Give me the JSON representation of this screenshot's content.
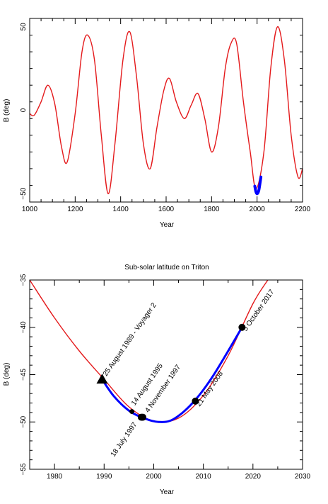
{
  "chart_data": [
    {
      "type": "line",
      "title": "",
      "xlabel": "Year",
      "ylabel": "B (deg)",
      "xlim": [
        1000,
        2200
      ],
      "ylim": [
        -55,
        55
      ],
      "x_major_ticks": [
        1000,
        1200,
        1400,
        1600,
        1800,
        2000,
        2200
      ],
      "x_tick_labels": [
        "1000",
        "1200",
        "1400",
        "1600",
        "1800",
        "2000",
        "2200"
      ],
      "y_major_ticks": [
        -50,
        0,
        50
      ],
      "y_tick_labels": [
        "−50",
        "0",
        "50"
      ],
      "grid": false,
      "series": [
        {
          "color": "#e41a1c",
          "x": [
            1000,
            1020,
            1050,
            1080,
            1110,
            1140,
            1165,
            1200,
            1230,
            1255,
            1285,
            1315,
            1345,
            1375,
            1410,
            1440,
            1470,
            1500,
            1530,
            1560,
            1590,
            1615,
            1645,
            1680,
            1710,
            1740,
            1770,
            1800,
            1830,
            1860,
            1885,
            1910,
            1940,
            1970,
            1995,
            2030,
            2060,
            2090,
            2120,
            2150,
            2180,
            2200
          ],
          "y": [
            -2,
            -3,
            5,
            15,
            4,
            -22,
            -31,
            -2,
            35,
            45,
            30,
            -15,
            -50,
            -20,
            30,
            47,
            20,
            -20,
            -35,
            -10,
            12,
            19,
            5,
            -5,
            3,
            10,
            -5,
            -25,
            -10,
            25,
            40,
            40,
            5,
            -25,
            -47,
            -25,
            25,
            50,
            30,
            -15,
            -40,
            -35
          ]
        },
        {
          "color": "#0000ff",
          "x": [
            1990,
            1995,
            2001,
            2008,
            2017
          ],
          "y": [
            -45.5,
            -48.9,
            -50,
            -47.8,
            -40
          ]
        }
      ]
    },
    {
      "type": "line",
      "title": "Sub-solar latitude on Triton",
      "xlabel": "Year",
      "ylabel": "B (deg)",
      "xlim": [
        1975,
        2030
      ],
      "ylim": [
        -55,
        -35
      ],
      "x_major_ticks": [
        1980,
        1990,
        2000,
        2010,
        2020,
        2030
      ],
      "x_tick_labels": [
        "1980",
        "1990",
        "2000",
        "2010",
        "2020",
        "2030"
      ],
      "y_major_ticks": [
        -55,
        -50,
        -45,
        -40,
        -35
      ],
      "y_tick_labels": [
        "−55",
        "−50",
        "−45",
        "−40",
        "−35"
      ],
      "grid": false,
      "series": [
        {
          "color": "#e41a1c",
          "x": [
            1975,
            1980,
            1985,
            1990,
            1995,
            2000,
            2005,
            2010,
            2015,
            2020,
            2023
          ],
          "y": [
            -35,
            -39.0,
            -42.5,
            -45.5,
            -48.4,
            -49.9,
            -49.6,
            -47.2,
            -43.0,
            -37.5,
            -35
          ]
        },
        {
          "color": "#0000ff",
          "x": [
            1989.6,
            1992,
            1995,
            1998,
            2001,
            2004,
            2008,
            2012,
            2017.8
          ],
          "y": [
            -45.5,
            -47.3,
            -48.8,
            -49.6,
            -50.0,
            -49.7,
            -47.9,
            -45.1,
            -40.0
          ]
        }
      ],
      "markers": [
        {
          "x": 1989.6,
          "y": -45.5,
          "symbol": "triangle",
          "label": "25 August 1989 - Voyager 2"
        },
        {
          "x": 1995.6,
          "y": -48.9,
          "symbol": "dot",
          "label": "14 August 1995"
        },
        {
          "x": 1997.5,
          "y": -49.5,
          "symbol": "dot",
          "label": "18 July 1997"
        },
        {
          "x": 1997.8,
          "y": -49.5,
          "symbol": "dot",
          "label": "4 November 1997"
        },
        {
          "x": 2008.4,
          "y": -47.8,
          "symbol": "dot",
          "label": "21 May 2008"
        },
        {
          "x": 2017.8,
          "y": -40.0,
          "symbol": "dot",
          "label": "5 October 2017"
        }
      ]
    }
  ]
}
